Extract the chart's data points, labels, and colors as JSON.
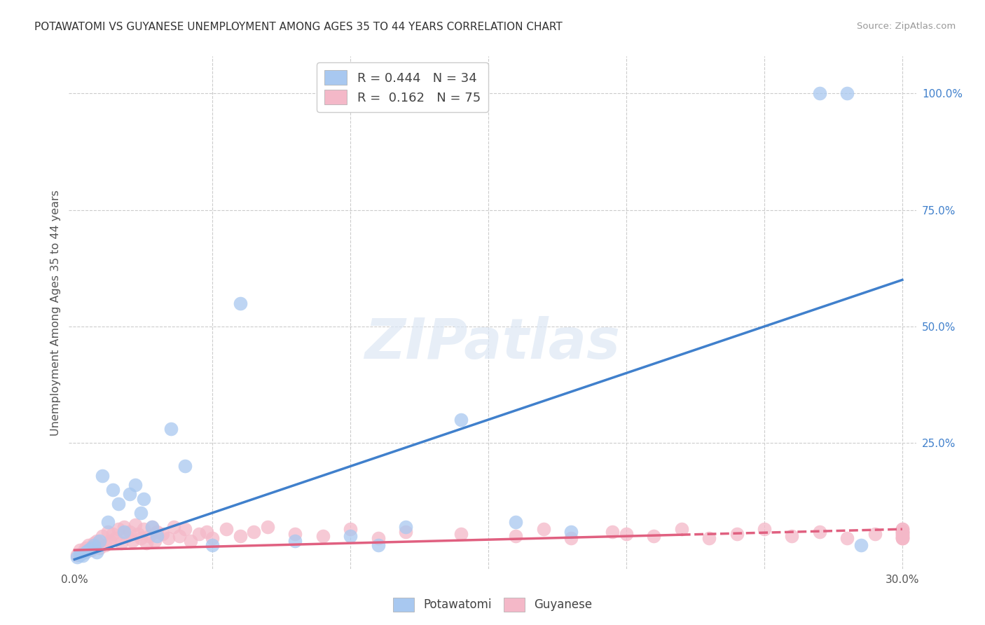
{
  "title": "POTAWATOMI VS GUYANESE UNEMPLOYMENT AMONG AGES 35 TO 44 YEARS CORRELATION CHART",
  "source": "Source: ZipAtlas.com",
  "ylabel": "Unemployment Among Ages 35 to 44 years",
  "xlim": [
    -0.002,
    0.305
  ],
  "ylim": [
    -0.02,
    1.08
  ],
  "r_potawatomi": 0.444,
  "n_potawatomi": 34,
  "r_guyanese": 0.162,
  "n_guyanese": 75,
  "potawatomi_color": "#a8c8f0",
  "guyanese_color": "#f4b8c8",
  "trendline_potawatomi_color": "#4080cc",
  "trendline_guyanese_color": "#e06080",
  "background_color": "#ffffff",
  "pot_trendline_x0": 0.0,
  "pot_trendline_y0": 0.0,
  "pot_trendline_x1": 0.3,
  "pot_trendline_y1": 0.6,
  "guy_trendline_x0": 0.0,
  "guy_trendline_y0": 0.02,
  "guy_trendline_x1": 0.3,
  "guy_trendline_y1": 0.065,
  "guy_trendline_solid_x1": 0.22,
  "potawatomi_x": [
    0.001,
    0.002,
    0.003,
    0.004,
    0.005,
    0.006,
    0.007,
    0.008,
    0.009,
    0.01,
    0.012,
    0.014,
    0.016,
    0.018,
    0.02,
    0.022,
    0.024,
    0.025,
    0.028,
    0.03,
    0.035,
    0.04,
    0.05,
    0.06,
    0.08,
    0.1,
    0.11,
    0.12,
    0.14,
    0.16,
    0.18,
    0.27,
    0.28,
    0.285
  ],
  "potawatomi_y": [
    0.005,
    0.01,
    0.008,
    0.015,
    0.02,
    0.025,
    0.03,
    0.015,
    0.04,
    0.18,
    0.08,
    0.15,
    0.12,
    0.06,
    0.14,
    0.16,
    0.1,
    0.13,
    0.07,
    0.05,
    0.28,
    0.2,
    0.03,
    0.55,
    0.04,
    0.05,
    0.03,
    0.07,
    0.3,
    0.08,
    0.06,
    1.0,
    1.0,
    0.03
  ],
  "guyanese_x": [
    0.001,
    0.002,
    0.003,
    0.004,
    0.005,
    0.006,
    0.007,
    0.008,
    0.009,
    0.01,
    0.011,
    0.012,
    0.013,
    0.014,
    0.015,
    0.016,
    0.017,
    0.018,
    0.019,
    0.02,
    0.021,
    0.022,
    0.023,
    0.024,
    0.025,
    0.026,
    0.027,
    0.028,
    0.029,
    0.03,
    0.032,
    0.034,
    0.036,
    0.038,
    0.04,
    0.042,
    0.045,
    0.048,
    0.05,
    0.055,
    0.06,
    0.065,
    0.07,
    0.08,
    0.09,
    0.1,
    0.11,
    0.12,
    0.14,
    0.16,
    0.17,
    0.18,
    0.195,
    0.2,
    0.21,
    0.22,
    0.23,
    0.24,
    0.25,
    0.26,
    0.27,
    0.28,
    0.29,
    0.3,
    0.3,
    0.3,
    0.3,
    0.3,
    0.3,
    0.3,
    0.3,
    0.3,
    0.3,
    0.3,
    0.3
  ],
  "guyanese_y": [
    0.01,
    0.02,
    0.015,
    0.025,
    0.03,
    0.02,
    0.035,
    0.04,
    0.025,
    0.05,
    0.03,
    0.06,
    0.04,
    0.055,
    0.045,
    0.065,
    0.035,
    0.07,
    0.05,
    0.06,
    0.04,
    0.075,
    0.055,
    0.045,
    0.065,
    0.035,
    0.05,
    0.07,
    0.04,
    0.06,
    0.055,
    0.045,
    0.07,
    0.05,
    0.065,
    0.04,
    0.055,
    0.06,
    0.045,
    0.065,
    0.05,
    0.06,
    0.07,
    0.055,
    0.05,
    0.065,
    0.045,
    0.06,
    0.055,
    0.05,
    0.065,
    0.045,
    0.06,
    0.055,
    0.05,
    0.065,
    0.045,
    0.055,
    0.065,
    0.05,
    0.06,
    0.045,
    0.055,
    0.06,
    0.045,
    0.055,
    0.065,
    0.05,
    0.045,
    0.06,
    0.055,
    0.065,
    0.05,
    0.06,
    0.045
  ]
}
